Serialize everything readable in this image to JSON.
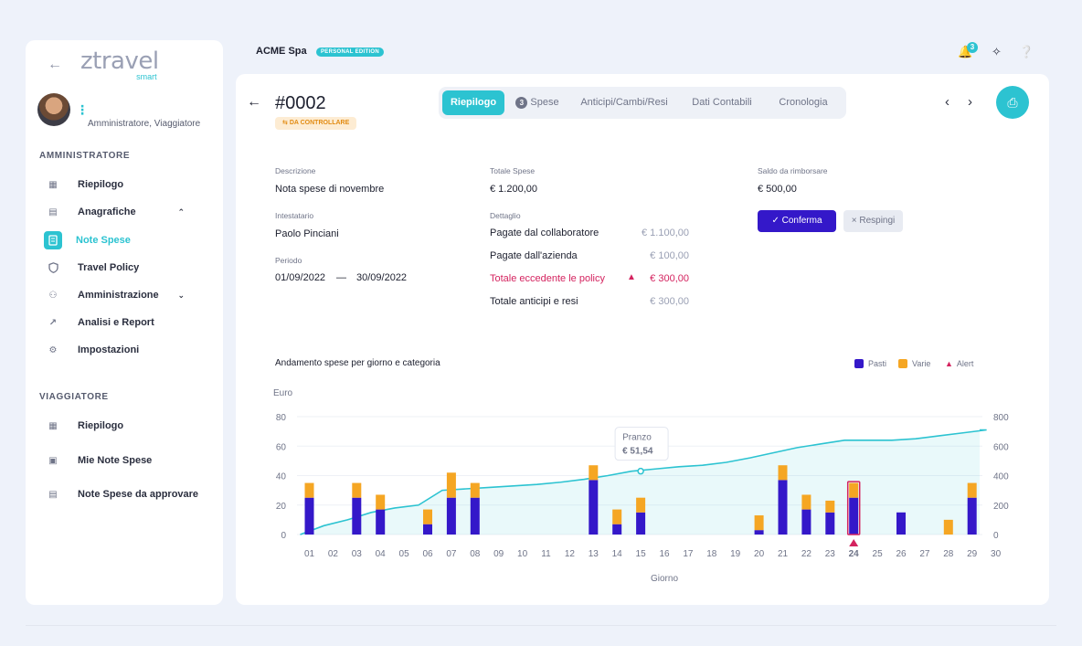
{
  "sidebar": {
    "logo_main": "ztravel",
    "logo_sub": "smart",
    "role": "Amministratore, Viaggiatore",
    "sections": [
      {
        "title": "AMMINISTRATORE",
        "items": [
          {
            "label": "Riepilogo",
            "icon": "dashboard-icon"
          },
          {
            "label": "Anagrafiche",
            "icon": "document-icon",
            "chevron": "up"
          },
          {
            "label": "Note Spese",
            "icon": "receipt-icon",
            "active": true
          },
          {
            "label": "Travel Policy",
            "icon": "shield-icon"
          },
          {
            "label": "Amministrazione",
            "icon": "people-icon",
            "chevron": "down"
          },
          {
            "label": "Analisi e Report",
            "icon": "trend-icon"
          },
          {
            "label": "Impostazioni",
            "icon": "gear-icon"
          }
        ]
      },
      {
        "title": "VIAGGIATORE",
        "items": [
          {
            "label": "Riepilogo",
            "icon": "dashboard-icon"
          },
          {
            "label": "Mie Note Spese",
            "icon": "receipt-icon"
          },
          {
            "label": "Note Spese da approvare",
            "icon": "list-icon"
          }
        ]
      }
    ]
  },
  "topbar": {
    "company": "ACME Spa",
    "edition": "PERSONAL EDITION",
    "notifications": "3"
  },
  "header": {
    "doc_number": "#0002",
    "status": "DA CONTROLLARE",
    "tabs": [
      {
        "label": "Riepilogo",
        "active": true
      },
      {
        "label": "Spese",
        "count": "3"
      },
      {
        "label": "Anticipi/Cambi/Resi"
      },
      {
        "label": "Dati Contabili"
      },
      {
        "label": "Cronologia"
      }
    ]
  },
  "details": {
    "descrizione_label": "Descrizione",
    "descrizione": "Nota spese di novembre",
    "intestatario_label": "Intestatario",
    "intestatario": "Paolo Pinciani",
    "periodo_label": "Periodo",
    "periodo_from": "01/09/2022",
    "periodo_sep": "—",
    "periodo_to": "30/09/2022",
    "totale_label": "Totale Spese",
    "totale": "€ 1.200,00",
    "dettaglio_label": "Dettaglio",
    "dettaglio": [
      {
        "label": "Pagate dal collaboratore",
        "value": "€ 1.100,00"
      },
      {
        "label": "Pagate dall'azienda",
        "value": "€ 100,00"
      },
      {
        "label": "Totale eccedente le policy",
        "value": "€ 300,00",
        "warning": true
      },
      {
        "label": "Totale anticipi e resi",
        "value": "€ 300,00"
      }
    ],
    "saldo_label": "Saldo da rimborsare",
    "saldo": "€ 500,00",
    "confirm_label": "Conferma",
    "reject_label": "Respingi"
  },
  "chart_data": {
    "type": "bar",
    "title": "Andamento spese per giorno e categoria",
    "ylabel": "Euro",
    "xlabel": "Giorno",
    "ylim": [
      0,
      80
    ],
    "y2lim": [
      0,
      800
    ],
    "yticks": [
      0,
      20,
      40,
      60,
      80
    ],
    "y2ticks": [
      0,
      200,
      400,
      600,
      800
    ],
    "categories": [
      "01",
      "02",
      "03",
      "04",
      "05",
      "06",
      "07",
      "08",
      "09",
      "10",
      "11",
      "12",
      "13",
      "14",
      "15",
      "16",
      "17",
      "18",
      "19",
      "20",
      "21",
      "22",
      "23",
      "24",
      "25",
      "26",
      "27",
      "28",
      "29",
      "30"
    ],
    "series": [
      {
        "name": "Pasti",
        "color": "#3418c9",
        "values": [
          25,
          0,
          25,
          17,
          0,
          7,
          25,
          25,
          0,
          0,
          0,
          0,
          37,
          7,
          15,
          0,
          0,
          0,
          0,
          3,
          37,
          17,
          15,
          25,
          0,
          15,
          0,
          0,
          25,
          0
        ]
      },
      {
        "name": "Varie",
        "color": "#f5a623",
        "values": [
          10,
          0,
          10,
          10,
          0,
          10,
          17,
          10,
          0,
          0,
          0,
          0,
          10,
          10,
          10,
          0,
          0,
          0,
          0,
          10,
          10,
          10,
          8,
          10,
          0,
          0,
          0,
          10,
          10,
          0
        ]
      }
    ],
    "cumulative": {
      "color": "#2cc3d1",
      "values": [
        0,
        60,
        100,
        150,
        180,
        200,
        300,
        310,
        320,
        330,
        340,
        355,
        375,
        400,
        430,
        445,
        460,
        470,
        490,
        520,
        555,
        590,
        615,
        640,
        640,
        640,
        650,
        670,
        690,
        710
      ]
    },
    "legend": [
      {
        "label": "Pasti",
        "color": "#3418c9"
      },
      {
        "label": "Varie",
        "color": "#f5a623"
      },
      {
        "label": "Alert",
        "color": "#d4235f",
        "shape": "triangle"
      }
    ],
    "alert_day": "24",
    "tooltip": {
      "label": "Pranzo",
      "value": "€ 51,54",
      "day": "15"
    }
  }
}
